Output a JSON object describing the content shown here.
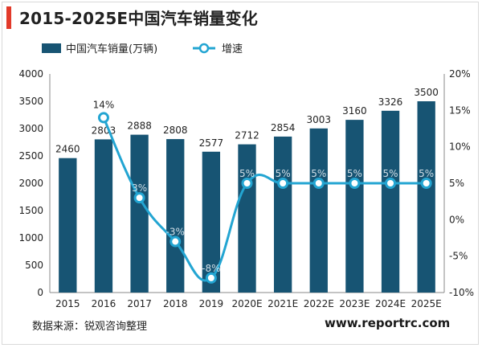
{
  "header": {
    "title": "2015-2025E中国汽车销量变化"
  },
  "footer": {
    "source": "数据来源：锐观咨询整理",
    "website": "www.reportrc.com"
  },
  "colors": {
    "bar": "#175473",
    "line": "#23a5d2",
    "accent": "#e23a2a"
  },
  "chart_data": {
    "type": "bar",
    "categories": [
      "2015",
      "2016",
      "2017",
      "2018",
      "2019",
      "2020E",
      "2021E",
      "2022E",
      "2023E",
      "2024E",
      "2025E"
    ],
    "series": [
      {
        "name": "中国汽车销量(万辆)",
        "type": "bar",
        "axis": "left",
        "values": [
          2460,
          2803,
          2888,
          2808,
          2577,
          2712,
          2854,
          3003,
          3160,
          3326,
          3500
        ],
        "labels": [
          "2460",
          "2803",
          "2888",
          "2808",
          "2577",
          "2712",
          "2854",
          "3003",
          "3160",
          "3326",
          "3500"
        ]
      },
      {
        "name": "增速",
        "type": "line",
        "axis": "right",
        "values": [
          null,
          14,
          3,
          -3,
          -8,
          5,
          5,
          5,
          5,
          5,
          5
        ],
        "labels": [
          "",
          "14%",
          "3%",
          "-3%",
          "-8%",
          "5%",
          "5%",
          "5%",
          "5%",
          "5%",
          "5%"
        ]
      }
    ],
    "y_left": {
      "min": 0,
      "max": 4000,
      "ticks": [
        "0",
        "500",
        "1000",
        "1500",
        "2000",
        "2500",
        "3000",
        "3500",
        "4000"
      ]
    },
    "y_right": {
      "min": -10,
      "max": 20,
      "ticks": [
        "-10%",
        "-5%",
        "0%",
        "5%",
        "10%",
        "15%",
        "20%"
      ]
    },
    "legend_position": "top-left",
    "grid": false
  }
}
